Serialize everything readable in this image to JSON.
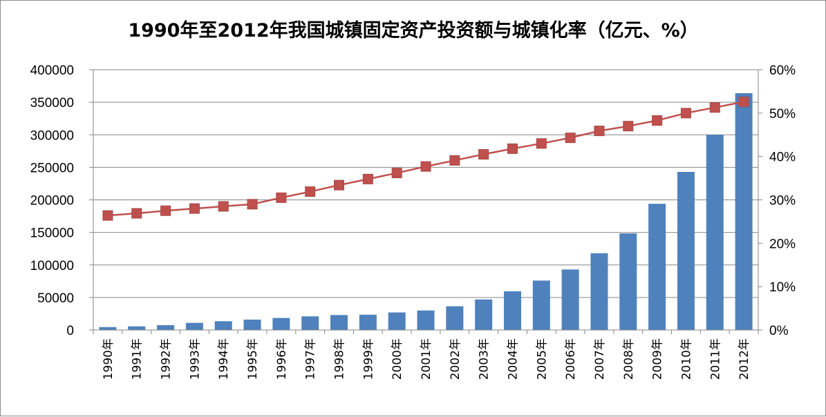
{
  "chart_data": {
    "type": "bar+line",
    "title": "1990年至2012年我国城镇固定资产投资额与城镇化率（亿元、%）",
    "categories": [
      "1990年",
      "1991年",
      "1992年",
      "1993年",
      "1994年",
      "1995年",
      "1996年",
      "1997年",
      "1998年",
      "1999年",
      "2000年",
      "2001年",
      "2002年",
      "2003年",
      "2004年",
      "2005年",
      "2006年",
      "2007年",
      "2008年",
      "2009年",
      "2010年",
      "2011年",
      "2012年"
    ],
    "series": [
      {
        "axis": "left",
        "kind": "bar",
        "color": "#4f81bd",
        "values": [
          4500,
          5600,
          7500,
          11000,
          13500,
          16000,
          18500,
          21000,
          23000,
          23500,
          27000,
          30000,
          36500,
          47000,
          59500,
          76000,
          93000,
          118000,
          148500,
          194000,
          243000,
          300000,
          364000
        ]
      },
      {
        "axis": "right",
        "kind": "line",
        "color": "#c0504d",
        "marker": "square",
        "values": [
          26.4,
          26.9,
          27.5,
          28.0,
          28.5,
          29.0,
          30.5,
          31.9,
          33.4,
          34.8,
          36.2,
          37.7,
          39.1,
          40.5,
          41.8,
          43.0,
          44.3,
          45.9,
          47.0,
          48.3,
          50.0,
          51.3,
          52.6
        ]
      }
    ],
    "left_axis": {
      "min": 0,
      "max": 400000,
      "ticks": [
        "0",
        "50000",
        "100000",
        "150000",
        "200000",
        "250000",
        "300000",
        "350000",
        "400000"
      ]
    },
    "right_axis": {
      "min": 0,
      "max": 60,
      "ticks": [
        "0%",
        "10%",
        "20%",
        "30%",
        "40%",
        "50%",
        "60%"
      ]
    },
    "grid": "horizontal",
    "legend": "none"
  }
}
